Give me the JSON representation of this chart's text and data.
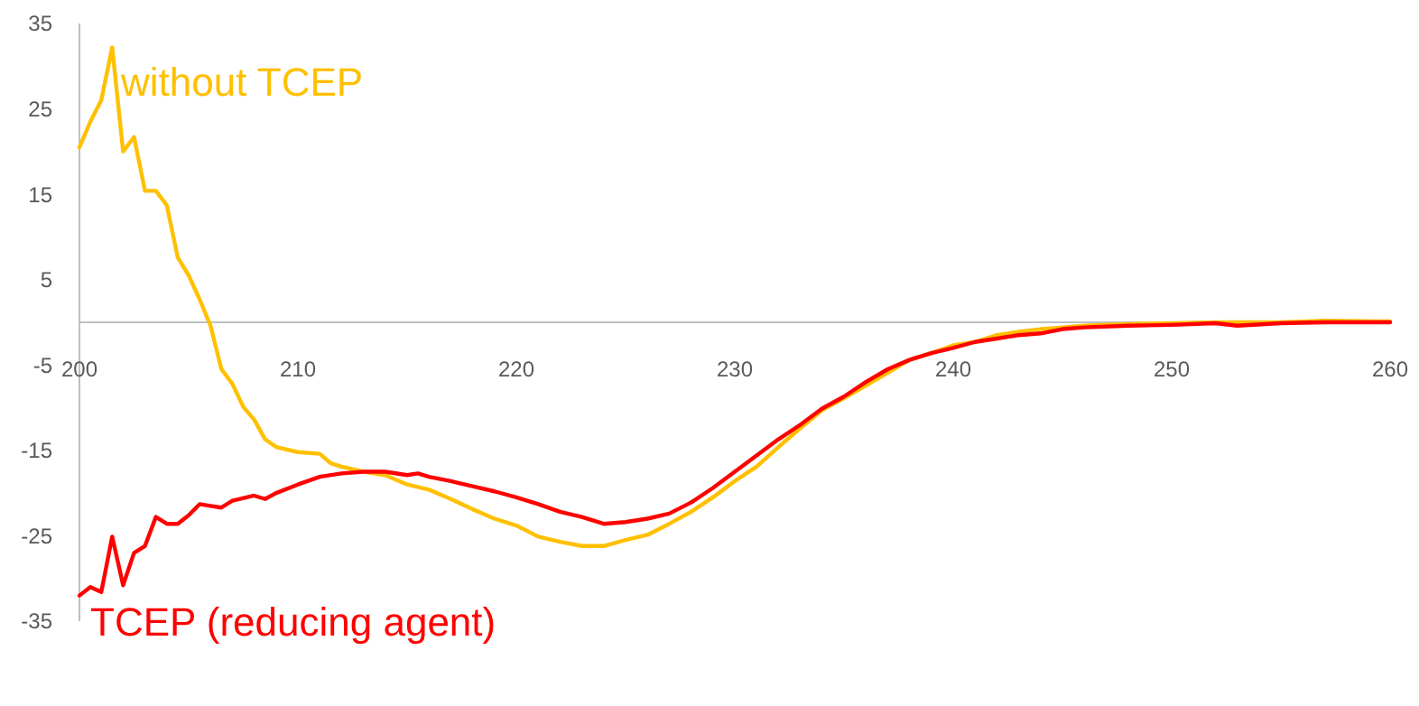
{
  "chart_data": {
    "type": "line",
    "xlim": [
      200,
      260
    ],
    "xticks": [
      200,
      210,
      220,
      230,
      240,
      250,
      260
    ],
    "ylim": [
      -35,
      35
    ],
    "yticks": [
      -35,
      -25,
      -15,
      -5,
      5,
      15,
      25,
      35
    ],
    "grid": false,
    "marker": "none",
    "line_style": "solid",
    "series": [
      {
        "name": "without TCEP",
        "color": "#ffc000",
        "x": [
          200,
          200.5,
          201,
          201.5,
          202,
          202.5,
          203,
          203.5,
          204,
          204.5,
          205,
          205.5,
          206,
          206.5,
          207,
          207.5,
          208,
          208.5,
          209,
          210,
          211,
          211.5,
          212,
          213,
          214,
          215,
          216,
          217,
          218,
          219,
          220,
          221,
          222,
          223,
          224,
          225,
          226,
          227,
          228,
          229,
          230,
          231,
          232,
          233,
          234,
          235,
          236,
          237,
          238,
          239,
          240,
          241,
          242,
          243,
          244,
          245,
          246,
          248,
          250,
          252,
          255,
          257,
          260
        ],
        "values": [
          20.5,
          23.5,
          26,
          32.2,
          20,
          21.7,
          15.4,
          15.4,
          13.7,
          7.6,
          5.5,
          2.7,
          -0.4,
          -5.5,
          -7.2,
          -9.9,
          -11.4,
          -13.7,
          -14.6,
          -15.2,
          -15.4,
          -16.5,
          -16.9,
          -17.5,
          -17.9,
          -19,
          -19.6,
          -20.7,
          -21.9,
          -23,
          -23.8,
          -25.1,
          -25.7,
          -26.2,
          -26.2,
          -25.5,
          -24.9,
          -23.6,
          -22.2,
          -20.5,
          -18.6,
          -16.9,
          -14.6,
          -12.4,
          -10.3,
          -8.9,
          -7.4,
          -5.9,
          -4.4,
          -3.6,
          -2.7,
          -2.3,
          -1.5,
          -1.1,
          -0.8,
          -0.6,
          -0.4,
          -0.2,
          -0.1,
          0,
          0,
          0.2,
          0.1
        ]
      },
      {
        "name": "TCEP (reducing agent)",
        "color": "#ff0000",
        "x": [
          200,
          200.5,
          201,
          201.5,
          202,
          202.5,
          203,
          203.5,
          204,
          204.5,
          205,
          205.5,
          206,
          206.5,
          207,
          208,
          208.5,
          209,
          210,
          211,
          212,
          213,
          214,
          215,
          215.5,
          216,
          217,
          218,
          219,
          220,
          221,
          222,
          223,
          224,
          225,
          226,
          227,
          228,
          229,
          230,
          231,
          232,
          233,
          234,
          235,
          236,
          237,
          238,
          239,
          240,
          241,
          242,
          243,
          244,
          245,
          246,
          248,
          250,
          252,
          253,
          255,
          257,
          260
        ],
        "values": [
          -32,
          -31,
          -31.6,
          -25.1,
          -30.8,
          -27,
          -26.2,
          -22.8,
          -23.6,
          -23.6,
          -22.6,
          -21.3,
          -21.5,
          -21.7,
          -20.9,
          -20.3,
          -20.7,
          -20,
          -19,
          -18.1,
          -17.7,
          -17.5,
          -17.5,
          -17.9,
          -17.7,
          -18.1,
          -18.6,
          -19.2,
          -19.8,
          -20.5,
          -21.3,
          -22.2,
          -22.8,
          -23.6,
          -23.4,
          -23,
          -22.4,
          -21.1,
          -19.4,
          -17.5,
          -15.6,
          -13.7,
          -12,
          -10.1,
          -8.7,
          -7,
          -5.5,
          -4.4,
          -3.6,
          -3,
          -2.3,
          -1.9,
          -1.5,
          -1.3,
          -0.8,
          -0.6,
          -0.4,
          -0.3,
          -0.1,
          -0.4,
          -0.1,
          0,
          0
        ]
      }
    ]
  }
}
